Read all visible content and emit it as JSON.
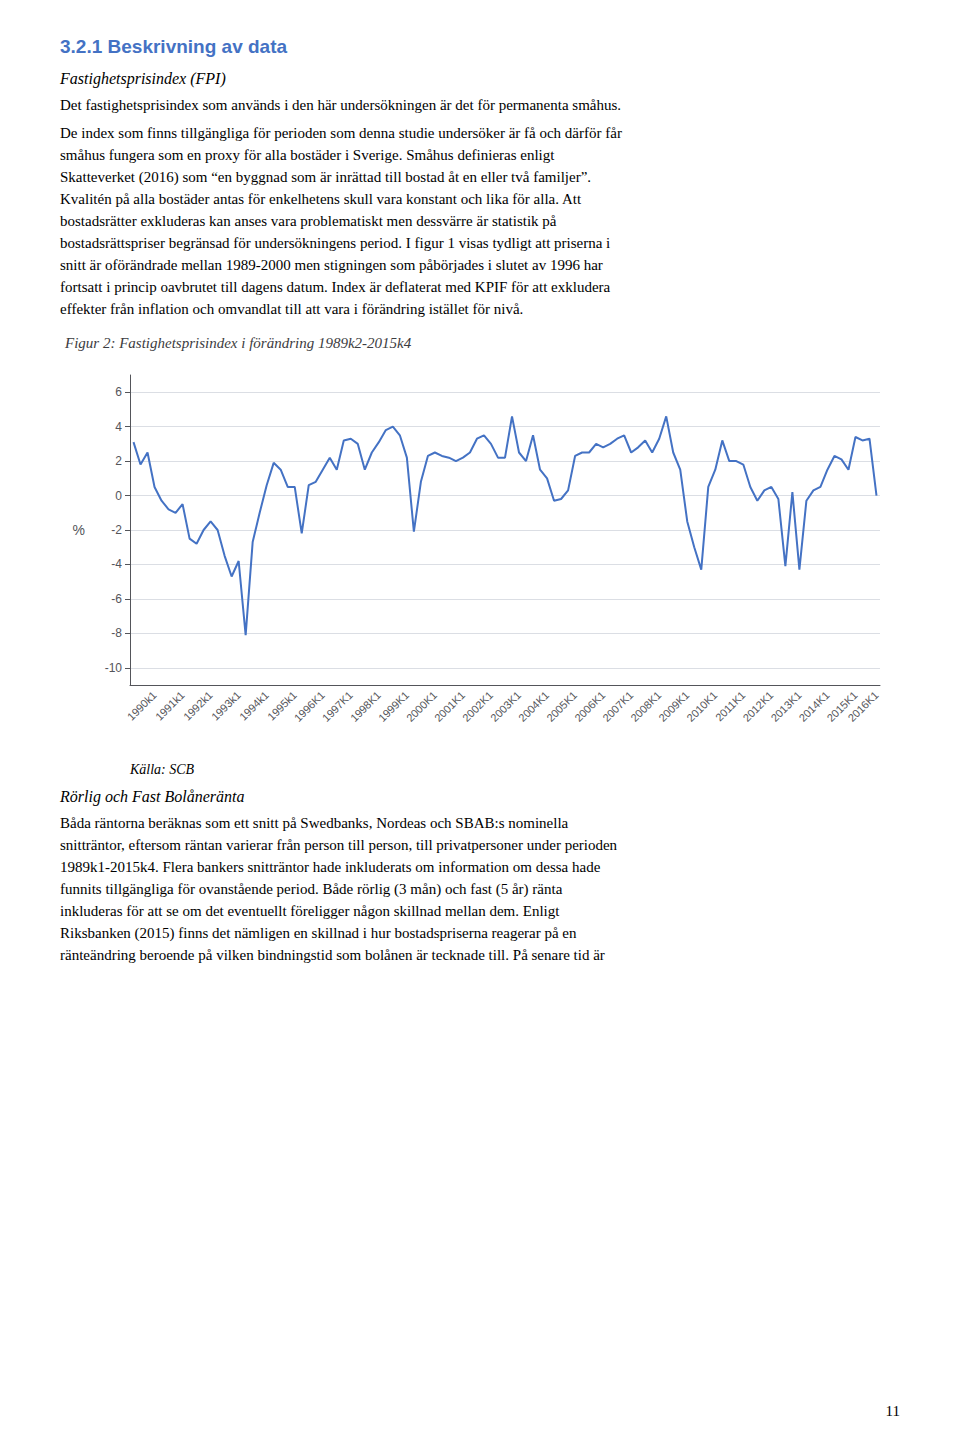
{
  "chart_data": {
    "type": "line",
    "title": "Figur 2: Fastighetsprisindex i förändring 1989k2-2015k4",
    "ylabel": "%",
    "annotations": [
      "Källa: SCB"
    ],
    "color": "#4472C4",
    "grid": true,
    "ylim": [
      -11,
      7
    ],
    "yticks": [
      6,
      4,
      2,
      0,
      -2,
      -4,
      -6,
      -8,
      -10
    ],
    "categories": [
      null,
      null,
      null,
      "1990k1",
      null,
      null,
      null,
      "1991k1",
      null,
      null,
      null,
      "1992k1",
      null,
      null,
      null,
      "1993k1",
      null,
      null,
      null,
      "1994k1",
      null,
      null,
      null,
      "1995k1",
      null,
      null,
      null,
      "1996K1",
      null,
      null,
      null,
      "1997K1",
      null,
      null,
      null,
      "1998K1",
      null,
      null,
      null,
      "1999K1",
      null,
      null,
      null,
      "2000K1",
      null,
      null,
      null,
      "2001K1",
      null,
      null,
      null,
      "2002K1",
      null,
      null,
      null,
      "2003K1",
      null,
      null,
      null,
      "2004K1",
      null,
      null,
      null,
      "2005K1",
      null,
      null,
      null,
      "2006K1",
      null,
      null,
      null,
      "2007K1",
      null,
      null,
      null,
      "2008K1",
      null,
      null,
      null,
      "2009K1",
      null,
      null,
      null,
      "2010K1",
      null,
      null,
      null,
      "2011K1",
      null,
      null,
      null,
      "2012K1",
      null,
      null,
      null,
      "2013K1",
      null,
      null,
      null,
      "2014K1",
      null,
      null,
      null,
      "2015K1",
      null,
      null,
      "2016K1"
    ],
    "values": [
      3.1,
      1.8,
      2.5,
      0.5,
      -0.3,
      -0.8,
      -1.0,
      -0.5,
      -2.5,
      -2.8,
      -2.0,
      -1.5,
      -2.0,
      -3.5,
      -4.7,
      -3.8,
      -8.1,
      -2.7,
      -1.0,
      0.6,
      1.9,
      1.5,
      0.5,
      0.5,
      -2.2,
      0.6,
      0.8,
      1.5,
      2.2,
      1.5,
      3.2,
      3.3,
      3.0,
      1.5,
      2.5,
      3.1,
      3.8,
      4.0,
      3.5,
      2.2,
      -2.1,
      0.8,
      2.3,
      2.5,
      2.3,
      2.2,
      2.0,
      2.2,
      2.5,
      3.3,
      3.5,
      3.0,
      2.2,
      2.2,
      4.6,
      2.5,
      2.0,
      3.5,
      1.5,
      1.0,
      -0.3,
      -0.2,
      0.3,
      2.3,
      2.5,
      2.5,
      3.0,
      2.8,
      3.0,
      3.3,
      3.5,
      2.5,
      2.8,
      3.2,
      2.5,
      3.3,
      4.6,
      2.5,
      1.5,
      -1.5,
      -3.0,
      -4.3,
      0.5,
      1.5,
      3.2,
      2.0,
      2.0,
      1.8,
      0.5,
      -0.3,
      0.3,
      0.5,
      -0.2,
      -4.1,
      0.2,
      -4.3,
      -0.3,
      0.3,
      0.5,
      1.5,
      2.3,
      2.1,
      1.5,
      3.4,
      3.2,
      3.3,
      0.0
    ]
  },
  "page_text": {
    "heading": "3.2.1 Beskrivning av data",
    "subheading1": "Fastighetsprisindex (FPI)",
    "before": [
      "Det fastighetsprisindex som används i den här undersökningen är det för permanenta småhus.",
      "De index som finns tillgängliga för perioden som denna studie undersöker är få och därför får",
      "småhus fungera som en proxy för alla bostäder i Sverige. Småhus definieras enligt",
      "Skatteverket (2016) som “en byggnad som är inrättad till bostad åt en eller två familjer”.",
      "Kvalitén på alla bostäder antas för enkelhetens skull vara konstant och lika för alla. Att",
      "bostadsrätter exkluderas kan anses vara problematiskt men dessvärre är statistik på",
      "bostadsrättspriser begränsad för undersökningens period. I figur 1 visas tydligt att priserna i",
      "snitt är oförändrade mellan 1989-2000 men stigningen som påbörjades i slutet av 1996 har",
      "fortsatt i princip oavbrutet till dagens datum. Index är deflaterat med KPIF för att exkludera",
      "effekter från inflation och omvandlat till att vara i förändring istället för nivå."
    ],
    "subheading2": "Rörlig och Fast Bolåneränta",
    "after": [
      "Båda räntorna beräknas som ett snitt på Swedbanks, Nordeas och SBAB:s nominella",
      "snitträntor, eftersom räntan varierar från person till person, till privatpersoner under perioden",
      "1989k1-2015k4. Flera bankers snitträntor hade inkluderats om information om dessa hade",
      "funnits tillgängliga för ovanstående period. Både rörlig (3 mån) och fast (5 år) ränta",
      "inkluderas för att se om det eventuellt föreligger någon skillnad mellan dem. Enligt",
      "Riksbanken (2015) finns det nämligen en skillnad i hur bostadspriserna reagerar på en",
      "ränteändring beroende på vilken bindningstid som bolånen är tecknade till. På senare tid är"
    ],
    "page_number": "11"
  }
}
